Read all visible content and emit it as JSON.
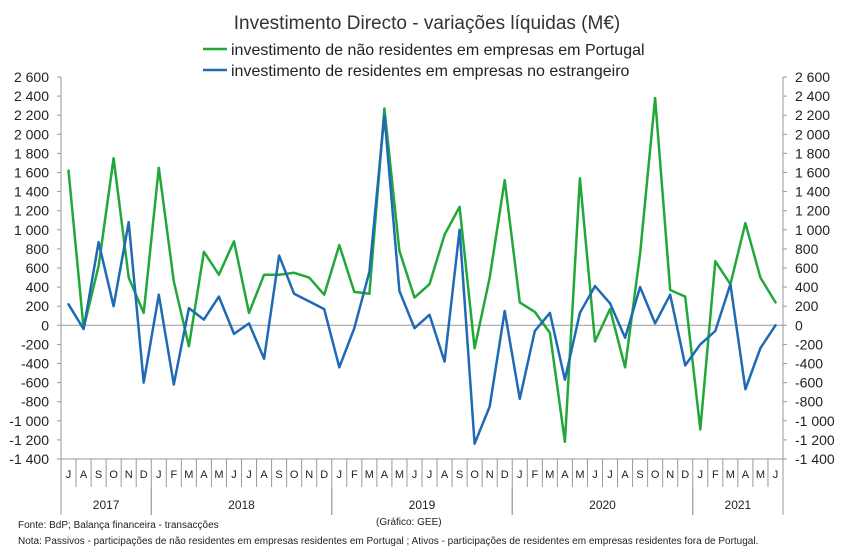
{
  "chart_data": {
    "type": "line",
    "title": "Investimento Directo - variações líquidas (M€)",
    "ylim": [
      -1400,
      2600
    ],
    "yticks": [
      -1400,
      -1200,
      -1000,
      -800,
      -600,
      -400,
      -200,
      0,
      200,
      400,
      600,
      800,
      1000,
      1200,
      1400,
      1600,
      1800,
      2000,
      2200,
      2400,
      2600
    ],
    "ytick_labels": [
      "-1 400",
      "-1 200",
      "-1 000",
      "-800",
      "-600",
      "-400",
      "-200",
      "0",
      "200",
      "400",
      "600",
      "800",
      "1 000",
      "1 200",
      "1 400",
      "1 600",
      "1 800",
      "2 000",
      "2 200",
      "2 400",
      "2 600"
    ],
    "secondary_axis": true,
    "legend_position": "top",
    "grid": false,
    "months": [
      "J",
      "A",
      "S",
      "O",
      "N",
      "D",
      "J",
      "F",
      "M",
      "A",
      "M",
      "J",
      "J",
      "A",
      "S",
      "O",
      "N",
      "D",
      "J",
      "F",
      "M",
      "A",
      "M",
      "J",
      "J",
      "A",
      "S",
      "O",
      "N",
      "D",
      "J",
      "F",
      "M",
      "A",
      "M",
      "J",
      "J",
      "A",
      "S",
      "O",
      "N",
      "D",
      "J",
      "F",
      "M",
      "A",
      "M",
      "J"
    ],
    "years": [
      {
        "label": "2017",
        "start": 0,
        "count": 6
      },
      {
        "label": "2018",
        "start": 6,
        "count": 12
      },
      {
        "label": "2019",
        "start": 18,
        "count": 12
      },
      {
        "label": "2020",
        "start": 30,
        "count": 12
      },
      {
        "label": "2021",
        "start": 42,
        "count": 6
      }
    ],
    "series": [
      {
        "name": "investimento de não residentes em empresas em Portugal",
        "color": "#22a83a",
        "values": [
          1620,
          -30,
          620,
          1750,
          500,
          130,
          1650,
          460,
          -220,
          770,
          530,
          880,
          130,
          530,
          530,
          550,
          500,
          320,
          840,
          350,
          330,
          2270,
          780,
          290,
          430,
          950,
          1240,
          -240,
          500,
          1520,
          240,
          140,
          -80,
          -1220,
          1540,
          -170,
          170,
          -440,
          750,
          2380,
          370,
          300,
          -1090,
          670,
          430,
          1070,
          500,
          240
        ]
      },
      {
        "name": "investimento de residentes em empresas no estrangeiro",
        "color": "#1f6ab5",
        "values": [
          220,
          -40,
          870,
          200,
          1080,
          -600,
          320,
          -620,
          180,
          60,
          300,
          -90,
          20,
          -350,
          730,
          330,
          250,
          170,
          -440,
          -30,
          560,
          2200,
          360,
          -30,
          110,
          -380,
          1000,
          -1240,
          -850,
          150,
          -770,
          -60,
          130,
          -570,
          130,
          410,
          230,
          -130,
          400,
          20,
          320,
          -420,
          -200,
          -60,
          430,
          -670,
          -240,
          0
        ]
      }
    ],
    "annotations": {
      "source": "Fonte: BdP; Balança financeira - transacções",
      "chart_credit": "(Gráfico: GEE)",
      "note": "Nota: Passivos - participações de não residentes em empresas residentes em Portugal ; Ativos - participações de residentes em empresas residentes fora de Portugal."
    }
  }
}
